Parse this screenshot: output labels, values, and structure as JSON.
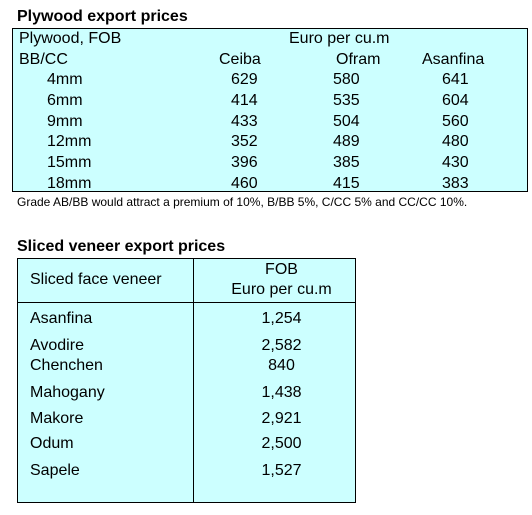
{
  "plywood": {
    "title": "Plywood export prices",
    "header_left_1": "Plywood, FOB",
    "header_left_2": "BB/CC",
    "unit": "Euro per cu.m",
    "columns": [
      "Ceiba",
      "Ofram",
      "Asanfina"
    ],
    "rows": [
      {
        "size": "4mm",
        "values": [
          "629",
          "580",
          "641"
        ]
      },
      {
        "size": "6mm",
        "values": [
          "414",
          "535",
          "604"
        ]
      },
      {
        "size": "9mm",
        "values": [
          "433",
          "504",
          "560"
        ]
      },
      {
        "size": "12mm",
        "values": [
          "352",
          "489",
          "480"
        ]
      },
      {
        "size": "15mm",
        "values": [
          "396",
          "385",
          "430"
        ]
      },
      {
        "size": "18mm",
        "values": [
          "460",
          "415",
          "383"
        ]
      }
    ],
    "note": "Grade AB/BB would attract a premium of 10%, B/BB 5%, C/CC 5% and CC/CC 10%."
  },
  "veneer": {
    "title": "Sliced veneer export prices",
    "header_left": "Sliced face veneer",
    "header_right_1": "FOB",
    "header_right_2": "Euro per cu.m",
    "rows": [
      {
        "name": "Asanfina",
        "value": "1,254"
      },
      {
        "name": "Avodire",
        "value": "2,582"
      },
      {
        "name": "Chenchen",
        "value": "840"
      },
      {
        "name": "Mahogany",
        "value": "1,438"
      },
      {
        "name": "Makore",
        "value": "2,921"
      },
      {
        "name": "Odum",
        "value": "2,500"
      },
      {
        "name": "Sapele",
        "value": "1,527"
      }
    ]
  }
}
